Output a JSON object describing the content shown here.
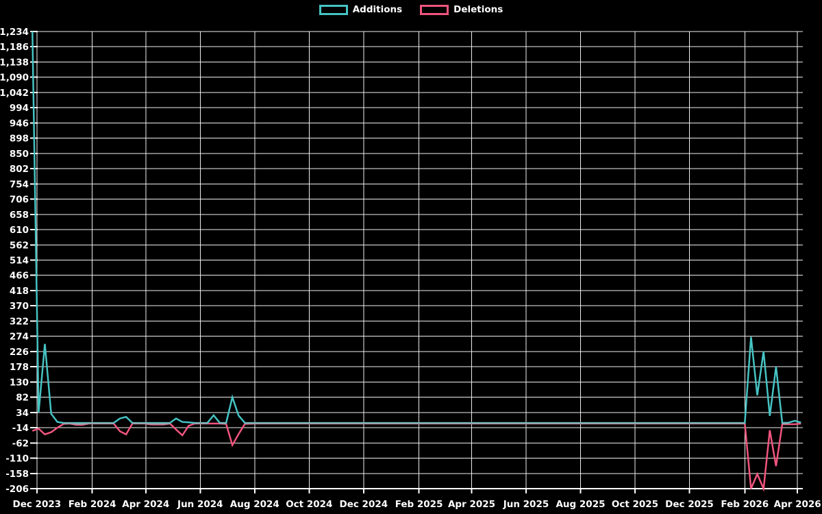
{
  "legend": {
    "items": [
      {
        "label": "Additions",
        "color": "#46c3c3"
      },
      {
        "label": "Deletions",
        "color": "#f1557e"
      }
    ]
  },
  "chart_data": {
    "type": "line",
    "title": "",
    "legend_position": "top-center",
    "grid": true,
    "background": "#000000",
    "grid_color": "#efefef",
    "axis_color": "#ffffff",
    "label_color": "#ffffff",
    "overlap_line_color": "#8ea8b0",
    "y_axis": {
      "min": -206,
      "max": 1234,
      "step": 48,
      "tick_labels": [
        "-206",
        "-158",
        "-110",
        "-62",
        "-14",
        "34",
        "82",
        "130",
        "178",
        "226",
        "274",
        "322",
        "370",
        "418",
        "466",
        "514",
        "562",
        "610",
        "658",
        "706",
        "754",
        "802",
        "850",
        "898",
        "946",
        "994",
        "1,042",
        "1,090",
        "1,138",
        "1,186",
        "1,234"
      ]
    },
    "x_axis": {
      "type": "time",
      "start": "2023-11-25",
      "end": "2026-04-07",
      "tick_dates": [
        "2023-12-01",
        "2024-02-01",
        "2024-04-01",
        "2024-06-01",
        "2024-08-01",
        "2024-10-01",
        "2024-12-01",
        "2025-02-01",
        "2025-04-01",
        "2025-06-01",
        "2025-08-01",
        "2025-10-01",
        "2025-12-01",
        "2026-02-01",
        "2026-04-01"
      ],
      "tick_labels": [
        "Dec 2023",
        "Feb 2024",
        "Apr 2024",
        "Jun 2024",
        "Aug 2024",
        "Oct 2024",
        "Dec 2024",
        "Feb 2025",
        "Apr 2025",
        "Jun 2025",
        "Aug 2025",
        "Oct 2025",
        "Dec 2025",
        "Feb 2026",
        "Apr 2026"
      ]
    },
    "series": [
      {
        "name": "Additions",
        "color": "#46c3c3",
        "points": [
          [
            "2023-11-26",
            1234
          ],
          [
            "2023-12-03",
            34
          ],
          [
            "2023-12-10",
            250
          ],
          [
            "2023-12-17",
            30
          ],
          [
            "2023-12-24",
            4
          ],
          [
            "2023-12-31",
            1
          ],
          [
            "2024-01-07",
            1
          ],
          [
            "2024-01-14",
            1
          ],
          [
            "2024-01-21",
            1
          ],
          [
            "2024-01-28",
            1
          ],
          [
            "2024-02-11",
            1
          ],
          [
            "2024-02-25",
            1
          ],
          [
            "2024-03-03",
            15
          ],
          [
            "2024-03-10",
            20
          ],
          [
            "2024-03-17",
            1
          ],
          [
            "2024-03-31",
            1
          ],
          [
            "2024-04-07",
            1
          ],
          [
            "2024-04-14",
            1
          ],
          [
            "2024-04-21",
            1
          ],
          [
            "2024-04-28",
            1
          ],
          [
            "2024-05-05",
            15
          ],
          [
            "2024-05-12",
            4
          ],
          [
            "2024-05-19",
            3
          ],
          [
            "2024-05-26",
            1
          ],
          [
            "2024-06-02",
            1
          ],
          [
            "2024-06-09",
            1
          ],
          [
            "2024-06-16",
            25
          ],
          [
            "2024-06-23",
            1
          ],
          [
            "2024-06-30",
            1
          ],
          [
            "2024-07-07",
            82
          ],
          [
            "2024-07-14",
            24
          ],
          [
            "2024-07-21",
            1
          ],
          [
            "2024-08-04",
            1
          ],
          [
            "2024-09-01",
            1
          ],
          [
            "2024-10-06",
            1
          ],
          [
            "2024-11-03",
            1
          ],
          [
            "2024-12-01",
            1
          ],
          [
            "2025-01-05",
            1
          ],
          [
            "2025-02-02",
            1
          ],
          [
            "2025-03-02",
            1
          ],
          [
            "2025-04-06",
            1
          ],
          [
            "2025-05-04",
            1
          ],
          [
            "2025-06-01",
            1
          ],
          [
            "2025-07-06",
            1
          ],
          [
            "2025-08-03",
            1
          ],
          [
            "2025-09-07",
            1
          ],
          [
            "2025-10-05",
            1
          ],
          [
            "2025-11-02",
            1
          ],
          [
            "2025-12-07",
            1
          ],
          [
            "2026-01-04",
            1
          ],
          [
            "2026-02-01",
            1
          ],
          [
            "2026-02-08",
            272
          ],
          [
            "2026-02-15",
            88
          ],
          [
            "2026-02-22",
            226
          ],
          [
            "2026-03-01",
            23
          ],
          [
            "2026-03-08",
            178
          ],
          [
            "2026-03-15",
            1
          ],
          [
            "2026-03-22",
            2
          ],
          [
            "2026-03-29",
            8
          ],
          [
            "2026-04-05",
            2
          ]
        ]
      },
      {
        "name": "Deletions",
        "color": "#f1557e",
        "points": [
          [
            "2023-11-26",
            -24
          ],
          [
            "2023-12-03",
            -17
          ],
          [
            "2023-12-10",
            -35
          ],
          [
            "2023-12-17",
            -28
          ],
          [
            "2023-12-24",
            -14
          ],
          [
            "2023-12-31",
            -2
          ],
          [
            "2024-01-07",
            -1
          ],
          [
            "2024-01-14",
            -5
          ],
          [
            "2024-01-21",
            -5
          ],
          [
            "2024-01-28",
            -1
          ],
          [
            "2024-02-11",
            -1
          ],
          [
            "2024-02-25",
            -1
          ],
          [
            "2024-03-03",
            -25
          ],
          [
            "2024-03-10",
            -35
          ],
          [
            "2024-03-17",
            -1
          ],
          [
            "2024-03-31",
            -1
          ],
          [
            "2024-04-07",
            -4
          ],
          [
            "2024-04-14",
            -4
          ],
          [
            "2024-04-21",
            -4
          ],
          [
            "2024-04-28",
            -1
          ],
          [
            "2024-05-05",
            -20
          ],
          [
            "2024-05-12",
            -38
          ],
          [
            "2024-05-19",
            -8
          ],
          [
            "2024-05-26",
            -1
          ],
          [
            "2024-06-02",
            -1
          ],
          [
            "2024-06-09",
            -1
          ],
          [
            "2024-06-16",
            -1
          ],
          [
            "2024-06-23",
            -1
          ],
          [
            "2024-06-30",
            -2
          ],
          [
            "2024-07-07",
            -69
          ],
          [
            "2024-07-14",
            -34
          ],
          [
            "2024-07-21",
            -2
          ],
          [
            "2024-08-04",
            -1
          ],
          [
            "2024-09-01",
            -1
          ],
          [
            "2024-10-06",
            -1
          ],
          [
            "2024-11-03",
            -1
          ],
          [
            "2024-12-01",
            -1
          ],
          [
            "2025-01-05",
            -1
          ],
          [
            "2025-02-02",
            -1
          ],
          [
            "2025-03-02",
            -1
          ],
          [
            "2025-04-06",
            -1
          ],
          [
            "2025-05-04",
            -1
          ],
          [
            "2025-06-01",
            -1
          ],
          [
            "2025-07-06",
            -1
          ],
          [
            "2025-08-03",
            -1
          ],
          [
            "2025-09-07",
            -1
          ],
          [
            "2025-10-05",
            -1
          ],
          [
            "2025-11-02",
            -1
          ],
          [
            "2025-12-07",
            -1
          ],
          [
            "2026-01-04",
            -1
          ],
          [
            "2026-02-01",
            -1
          ],
          [
            "2026-02-08",
            -206
          ],
          [
            "2026-02-15",
            -160
          ],
          [
            "2026-02-22",
            -206
          ],
          [
            "2026-03-01",
            -22
          ],
          [
            "2026-03-08",
            -135
          ],
          [
            "2026-03-15",
            -3
          ],
          [
            "2026-03-22",
            -3
          ],
          [
            "2026-03-29",
            -3
          ],
          [
            "2026-04-05",
            -1
          ]
        ]
      }
    ]
  }
}
